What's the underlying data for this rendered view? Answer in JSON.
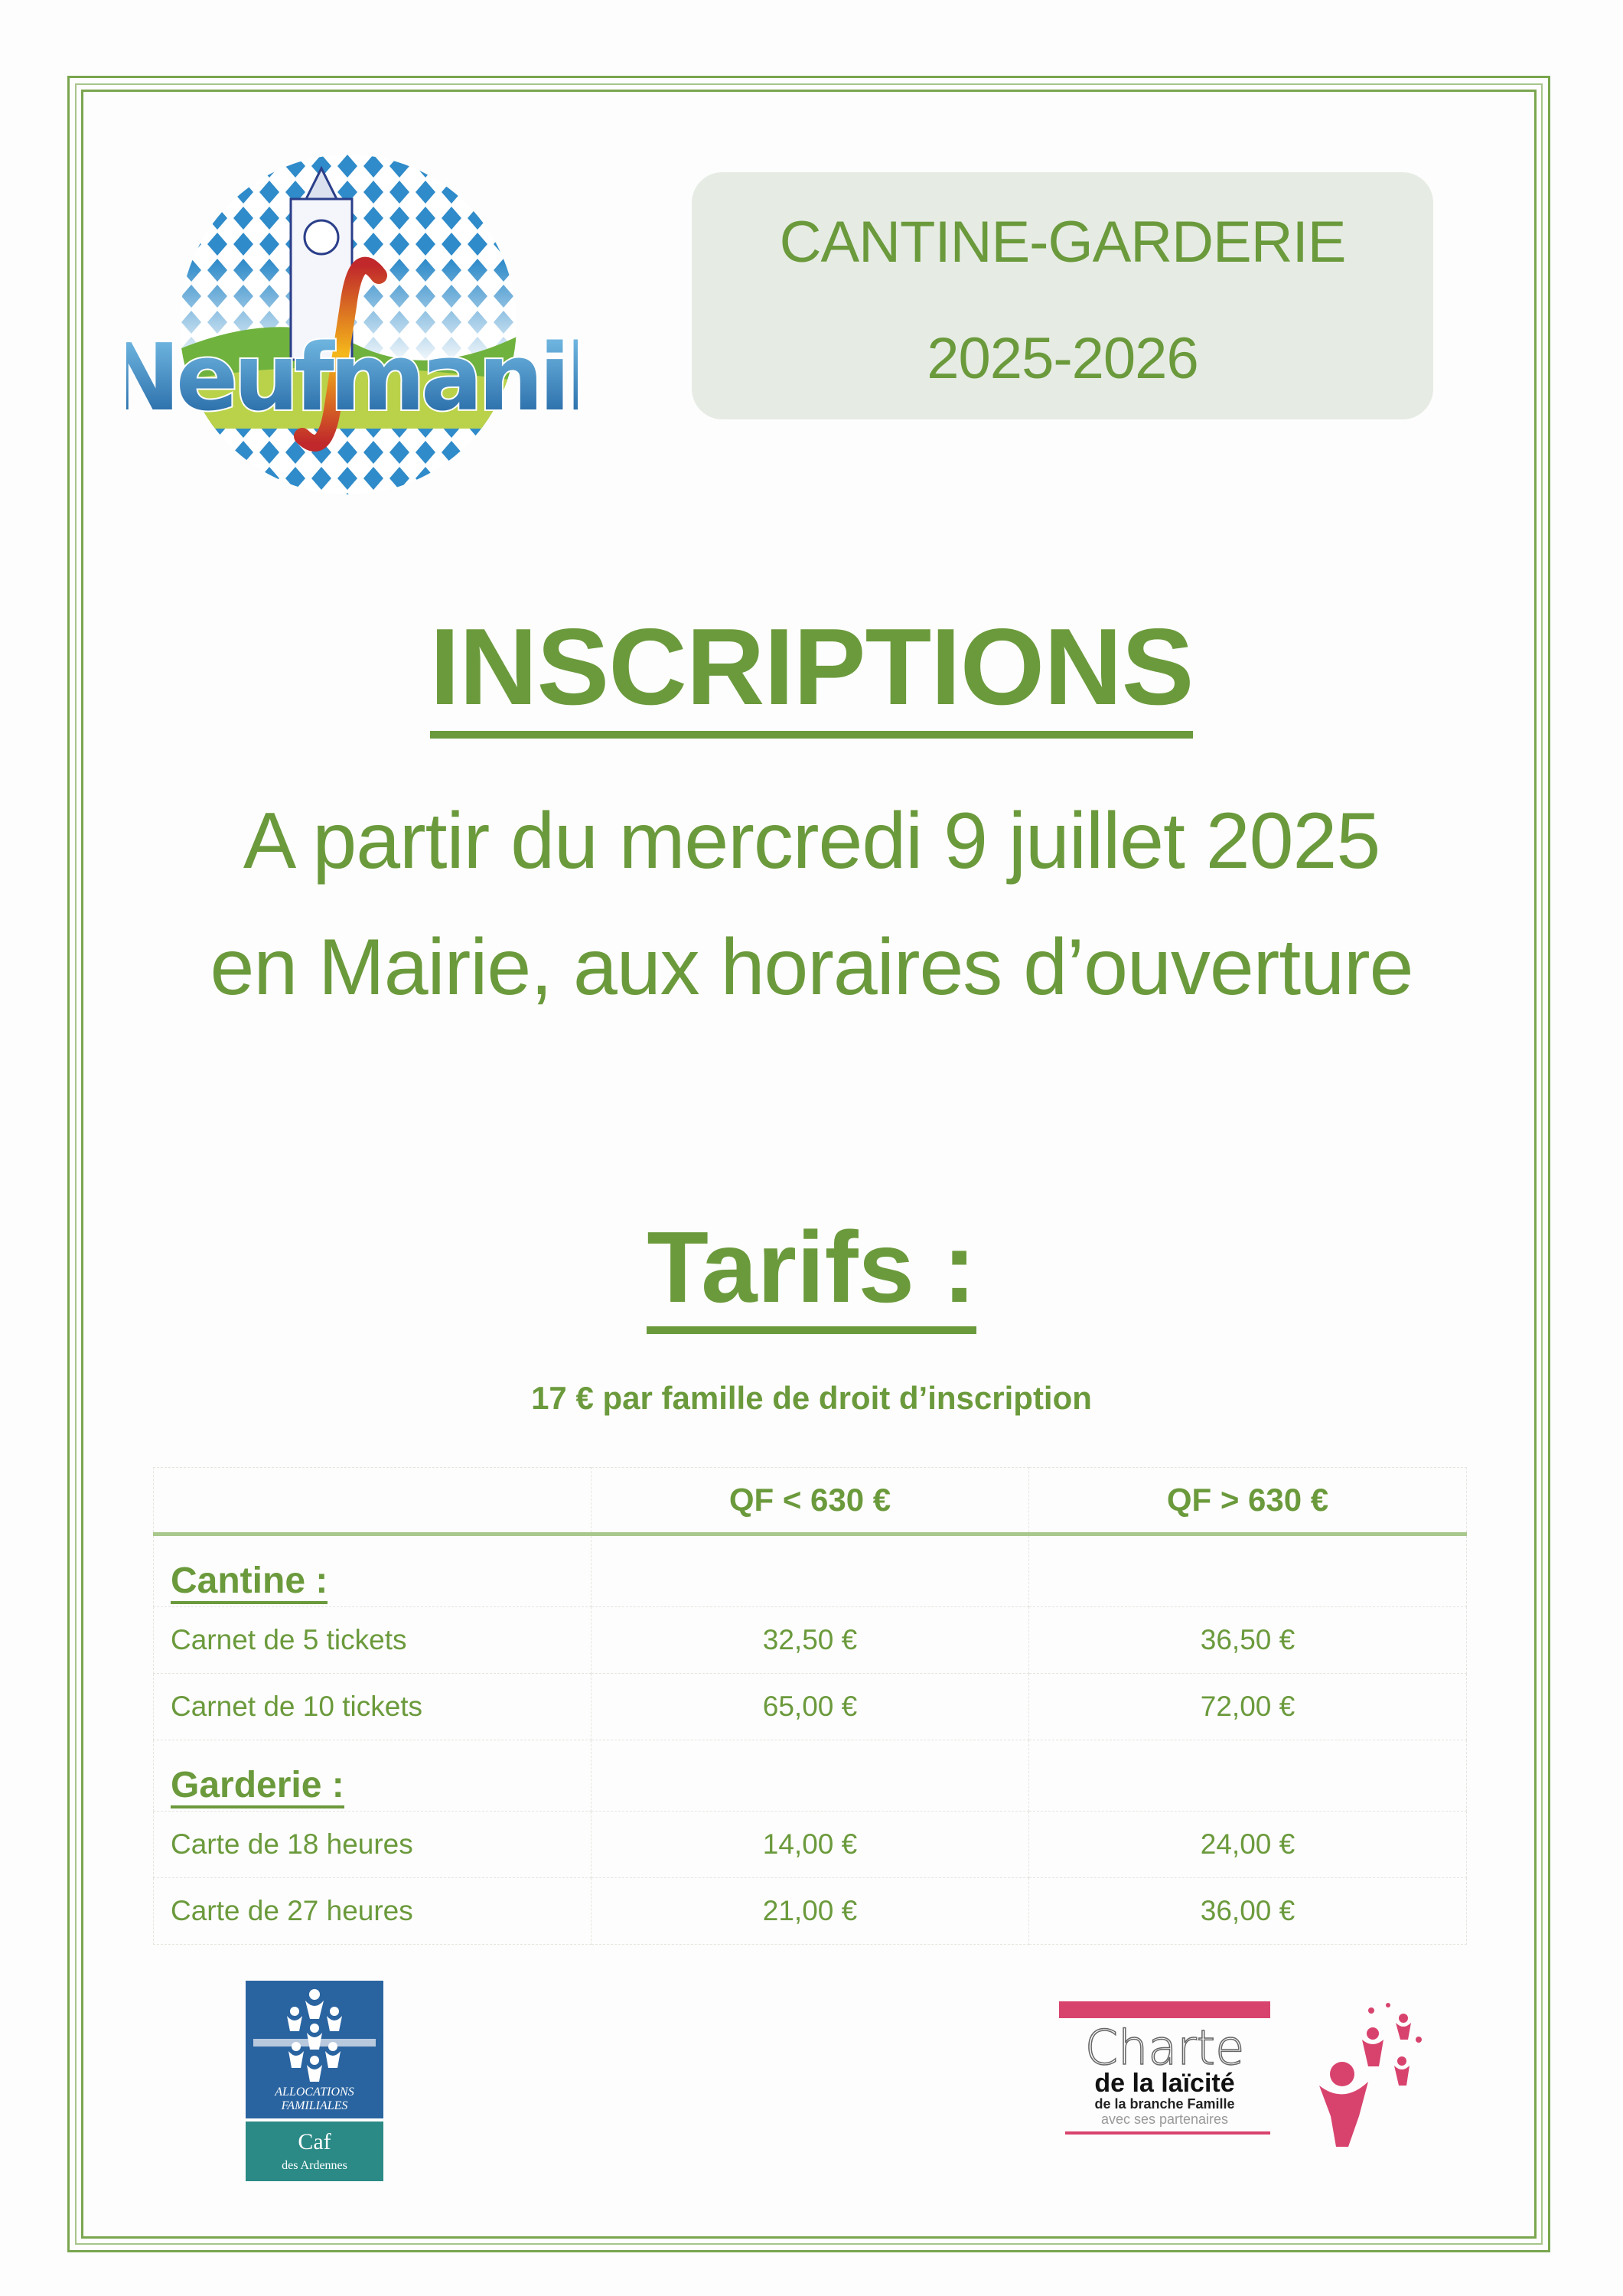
{
  "logo": {
    "text": "Neufmanil"
  },
  "header": {
    "line1": "CANTINE-GARDERIE",
    "line2": "2025-2026"
  },
  "main": {
    "heading": "INSCRIPTIONS",
    "date_line": "A partir du mercredi 9 juillet 2025",
    "place_line": "en Mairie, aux horaires d’ouverture",
    "tarifs_heading": "Tarifs :",
    "registration_fee": "17 € par famille de droit d’inscription"
  },
  "table": {
    "columns": [
      "",
      "QF < 630 €",
      "QF > 630 €"
    ],
    "sections": [
      {
        "title": "Cantine :",
        "rows": [
          {
            "label": "Carnet de 5 tickets",
            "low": "32,50 €",
            "high": "36,50 €"
          },
          {
            "label": "Carnet de 10 tickets",
            "low": "65,00 €",
            "high": "72,00 €"
          }
        ]
      },
      {
        "title": "Garderie :",
        "rows": [
          {
            "label": "Carte de 18 heures",
            "low": "14,00 €",
            "high": "24,00 €"
          },
          {
            "label": "Carte de 27 heures",
            "low": "21,00 €",
            "high": "36,00 €"
          }
        ]
      }
    ]
  },
  "footer": {
    "caf": {
      "line1": "ALLOCATIONS",
      "line2": "FAMILIALES",
      "line3": "Caf",
      "line4": "des Ardennes"
    },
    "charte": {
      "line1": "Charte",
      "line2": "de la laïcité",
      "line3": "de la branche Famille",
      "line4": "avec ses partenaires"
    }
  },
  "colors": {
    "text_green": "#6b9a3c",
    "title_box": "#e6ece4",
    "caf_blue": "#2a64a0",
    "caf_teal": "#2b8a86",
    "charte_pink": "#d8436e"
  }
}
